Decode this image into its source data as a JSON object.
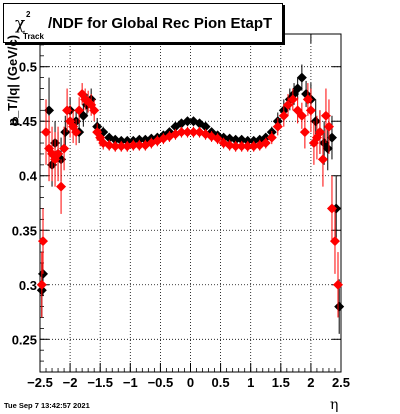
{
  "title": {
    "symbol": "χ",
    "superscript": "2",
    "subscript": "Track",
    "text": "/NDF for Global Rec Pion EtapT"
  },
  "footer": "Tue Sep  7 13:42:57 2021",
  "colors": {
    "series_black": "#000000",
    "series_red": "#ff0000",
    "grid": "#000000"
  },
  "chart_data": {
    "type": "scatter",
    "title": "χ²_Track/NDF for Global Rec Pion EtapT",
    "xlabel": "η",
    "ylabel": "p_T/|q| (GeV/c)",
    "xlim": [
      -2.5,
      2.5
    ],
    "ylim": [
      0.22,
      0.53
    ],
    "grid": true,
    "xticks": [
      -2.5,
      -2,
      -1.5,
      -1,
      -0.5,
      0,
      0.5,
      1,
      1.5,
      2,
      2.5
    ],
    "xtick_labels": [
      "−2.5",
      "−2",
      "−1.5",
      "−1",
      "−0.5",
      "0",
      "0.5",
      "1",
      "1.5",
      "2",
      "2.5"
    ],
    "yticks": [
      0.25,
      0.3,
      0.35,
      0.4,
      0.45,
      0.5
    ],
    "ytick_labels": [
      "0.25",
      "0.3",
      "0.35",
      "0.4",
      "0.45",
      "0.5"
    ],
    "series": [
      {
        "color": "#000000",
        "points": [
          {
            "x": -2.47,
            "y": 0.295,
            "err": 0.025
          },
          {
            "x": -2.45,
            "y": 0.31,
            "err": 0.02
          },
          {
            "x": -2.35,
            "y": 0.46,
            "err": 0.03
          },
          {
            "x": -2.3,
            "y": 0.41,
            "err": 0.02
          },
          {
            "x": -2.25,
            "y": 0.43,
            "err": 0.02
          },
          {
            "x": -2.2,
            "y": 0.42,
            "err": 0.02
          },
          {
            "x": -2.15,
            "y": 0.415,
            "err": 0.02
          },
          {
            "x": -2.08,
            "y": 0.44,
            "err": 0.015
          },
          {
            "x": -2.0,
            "y": 0.46,
            "err": 0.012
          },
          {
            "x": -1.9,
            "y": 0.45,
            "err": 0.01
          },
          {
            "x": -1.85,
            "y": 0.44,
            "err": 0.01
          },
          {
            "x": -1.78,
            "y": 0.455,
            "err": 0.01
          },
          {
            "x": -1.72,
            "y": 0.465,
            "err": 0.01
          },
          {
            "x": -1.65,
            "y": 0.47,
            "err": 0.01
          },
          {
            "x": -1.55,
            "y": 0.445,
            "err": 0.008
          },
          {
            "x": -1.45,
            "y": 0.44,
            "err": 0.005
          },
          {
            "x": -1.35,
            "y": 0.435,
            "err": 0.004
          },
          {
            "x": -1.25,
            "y": 0.433,
            "err": 0.004
          },
          {
            "x": -1.15,
            "y": 0.432,
            "err": 0.004
          },
          {
            "x": -1.05,
            "y": 0.432,
            "err": 0.004
          },
          {
            "x": -0.95,
            "y": 0.432,
            "err": 0.004
          },
          {
            "x": -0.85,
            "y": 0.433,
            "err": 0.004
          },
          {
            "x": -0.75,
            "y": 0.433,
            "err": 0.004
          },
          {
            "x": -0.65,
            "y": 0.434,
            "err": 0.004
          },
          {
            "x": -0.55,
            "y": 0.435,
            "err": 0.004
          },
          {
            "x": -0.45,
            "y": 0.437,
            "err": 0.004
          },
          {
            "x": -0.35,
            "y": 0.44,
            "err": 0.004
          },
          {
            "x": -0.25,
            "y": 0.445,
            "err": 0.004
          },
          {
            "x": -0.15,
            "y": 0.448,
            "err": 0.004
          },
          {
            "x": -0.05,
            "y": 0.45,
            "err": 0.004
          },
          {
            "x": 0.05,
            "y": 0.45,
            "err": 0.004
          },
          {
            "x": 0.15,
            "y": 0.448,
            "err": 0.004
          },
          {
            "x": 0.25,
            "y": 0.445,
            "err": 0.004
          },
          {
            "x": 0.35,
            "y": 0.44,
            "err": 0.004
          },
          {
            "x": 0.45,
            "y": 0.437,
            "err": 0.004
          },
          {
            "x": 0.55,
            "y": 0.435,
            "err": 0.004
          },
          {
            "x": 0.65,
            "y": 0.434,
            "err": 0.004
          },
          {
            "x": 0.75,
            "y": 0.433,
            "err": 0.004
          },
          {
            "x": 0.85,
            "y": 0.433,
            "err": 0.004
          },
          {
            "x": 0.95,
            "y": 0.432,
            "err": 0.004
          },
          {
            "x": 1.05,
            "y": 0.432,
            "err": 0.004
          },
          {
            "x": 1.15,
            "y": 0.433,
            "err": 0.004
          },
          {
            "x": 1.25,
            "y": 0.435,
            "err": 0.004
          },
          {
            "x": 1.35,
            "y": 0.44,
            "err": 0.005
          },
          {
            "x": 1.45,
            "y": 0.45,
            "err": 0.008
          },
          {
            "x": 1.55,
            "y": 0.46,
            "err": 0.01
          },
          {
            "x": 1.65,
            "y": 0.47,
            "err": 0.01
          },
          {
            "x": 1.72,
            "y": 0.475,
            "err": 0.01
          },
          {
            "x": 1.78,
            "y": 0.48,
            "err": 0.01
          },
          {
            "x": 1.85,
            "y": 0.49,
            "err": 0.012
          },
          {
            "x": 1.92,
            "y": 0.475,
            "err": 0.012
          },
          {
            "x": 2.0,
            "y": 0.47,
            "err": 0.015
          },
          {
            "x": 2.08,
            "y": 0.45,
            "err": 0.02
          },
          {
            "x": 2.15,
            "y": 0.44,
            "err": 0.02
          },
          {
            "x": 2.22,
            "y": 0.43,
            "err": 0.02
          },
          {
            "x": 2.28,
            "y": 0.425,
            "err": 0.02
          },
          {
            "x": 2.35,
            "y": 0.435,
            "err": 0.02
          },
          {
            "x": 2.42,
            "y": 0.37,
            "err": 0.03
          },
          {
            "x": 2.47,
            "y": 0.28,
            "err": 0.025
          }
        ]
      },
      {
        "color": "#ff0000",
        "points": [
          {
            "x": -2.47,
            "y": 0.3,
            "err": 0.03
          },
          {
            "x": -2.45,
            "y": 0.34,
            "err": 0.03
          },
          {
            "x": -2.4,
            "y": 0.44,
            "err": 0.03
          },
          {
            "x": -2.35,
            "y": 0.425,
            "err": 0.03
          },
          {
            "x": -2.3,
            "y": 0.42,
            "err": 0.025
          },
          {
            "x": -2.25,
            "y": 0.415,
            "err": 0.025
          },
          {
            "x": -2.2,
            "y": 0.42,
            "err": 0.025
          },
          {
            "x": -2.15,
            "y": 0.39,
            "err": 0.025
          },
          {
            "x": -2.1,
            "y": 0.425,
            "err": 0.02
          },
          {
            "x": -2.05,
            "y": 0.46,
            "err": 0.02
          },
          {
            "x": -2.0,
            "y": 0.45,
            "err": 0.015
          },
          {
            "x": -1.95,
            "y": 0.445,
            "err": 0.015
          },
          {
            "x": -1.9,
            "y": 0.44,
            "err": 0.012
          },
          {
            "x": -1.85,
            "y": 0.46,
            "err": 0.012
          },
          {
            "x": -1.8,
            "y": 0.475,
            "err": 0.01
          },
          {
            "x": -1.75,
            "y": 0.47,
            "err": 0.01
          },
          {
            "x": -1.7,
            "y": 0.468,
            "err": 0.01
          },
          {
            "x": -1.65,
            "y": 0.465,
            "err": 0.01
          },
          {
            "x": -1.6,
            "y": 0.46,
            "err": 0.01
          },
          {
            "x": -1.55,
            "y": 0.44,
            "err": 0.008
          },
          {
            "x": -1.5,
            "y": 0.435,
            "err": 0.008
          },
          {
            "x": -1.45,
            "y": 0.43,
            "err": 0.006
          },
          {
            "x": -1.35,
            "y": 0.428,
            "err": 0.005
          },
          {
            "x": -1.25,
            "y": 0.427,
            "err": 0.005
          },
          {
            "x": -1.15,
            "y": 0.427,
            "err": 0.005
          },
          {
            "x": -1.05,
            "y": 0.427,
            "err": 0.005
          },
          {
            "x": -0.95,
            "y": 0.428,
            "err": 0.005
          },
          {
            "x": -0.85,
            "y": 0.428,
            "err": 0.005
          },
          {
            "x": -0.75,
            "y": 0.428,
            "err": 0.005
          },
          {
            "x": -0.65,
            "y": 0.43,
            "err": 0.005
          },
          {
            "x": -0.55,
            "y": 0.432,
            "err": 0.005
          },
          {
            "x": -0.45,
            "y": 0.434,
            "err": 0.005
          },
          {
            "x": -0.35,
            "y": 0.436,
            "err": 0.005
          },
          {
            "x": -0.25,
            "y": 0.438,
            "err": 0.005
          },
          {
            "x": -0.15,
            "y": 0.44,
            "err": 0.005
          },
          {
            "x": -0.05,
            "y": 0.44,
            "err": 0.005
          },
          {
            "x": 0.05,
            "y": 0.44,
            "err": 0.005
          },
          {
            "x": 0.15,
            "y": 0.44,
            "err": 0.005
          },
          {
            "x": 0.25,
            "y": 0.438,
            "err": 0.005
          },
          {
            "x": 0.35,
            "y": 0.436,
            "err": 0.005
          },
          {
            "x": 0.45,
            "y": 0.434,
            "err": 0.005
          },
          {
            "x": 0.55,
            "y": 0.43,
            "err": 0.005
          },
          {
            "x": 0.65,
            "y": 0.428,
            "err": 0.005
          },
          {
            "x": 0.75,
            "y": 0.427,
            "err": 0.005
          },
          {
            "x": 0.85,
            "y": 0.427,
            "err": 0.005
          },
          {
            "x": 0.95,
            "y": 0.427,
            "err": 0.005
          },
          {
            "x": 1.05,
            "y": 0.427,
            "err": 0.005
          },
          {
            "x": 1.15,
            "y": 0.428,
            "err": 0.005
          },
          {
            "x": 1.25,
            "y": 0.43,
            "err": 0.005
          },
          {
            "x": 1.35,
            "y": 0.435,
            "err": 0.006
          },
          {
            "x": 1.45,
            "y": 0.445,
            "err": 0.008
          },
          {
            "x": 1.55,
            "y": 0.455,
            "err": 0.01
          },
          {
            "x": 1.62,
            "y": 0.465,
            "err": 0.01
          },
          {
            "x": 1.7,
            "y": 0.47,
            "err": 0.01
          },
          {
            "x": 1.78,
            "y": 0.46,
            "err": 0.012
          },
          {
            "x": 1.85,
            "y": 0.455,
            "err": 0.012
          },
          {
            "x": 1.9,
            "y": 0.44,
            "err": 0.015
          },
          {
            "x": 1.95,
            "y": 0.47,
            "err": 0.015
          },
          {
            "x": 2.0,
            "y": 0.46,
            "err": 0.02
          },
          {
            "x": 2.05,
            "y": 0.43,
            "err": 0.02
          },
          {
            "x": 2.1,
            "y": 0.435,
            "err": 0.02
          },
          {
            "x": 2.15,
            "y": 0.44,
            "err": 0.02
          },
          {
            "x": 2.2,
            "y": 0.415,
            "err": 0.025
          },
          {
            "x": 2.25,
            "y": 0.455,
            "err": 0.025
          },
          {
            "x": 2.3,
            "y": 0.445,
            "err": 0.025
          },
          {
            "x": 2.35,
            "y": 0.37,
            "err": 0.03
          },
          {
            "x": 2.4,
            "y": 0.34,
            "err": 0.03
          },
          {
            "x": 2.45,
            "y": 0.3,
            "err": 0.03
          }
        ]
      }
    ]
  }
}
